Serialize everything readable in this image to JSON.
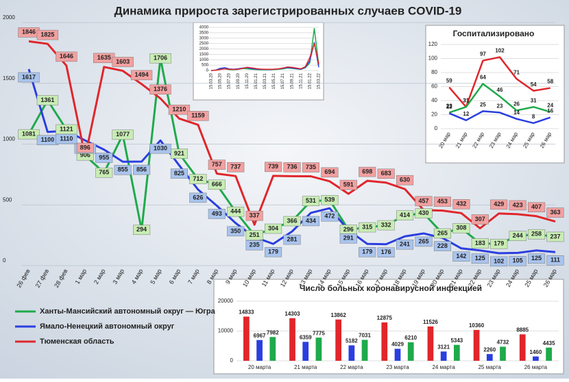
{
  "chart_data": [
    {
      "type": "line",
      "title": "Динамика прироста зарегистрированных случаев COVID-19",
      "categories": [
        "26 фев",
        "27 фев",
        "28 фев",
        "1 мар",
        "2 мар",
        "3 мар",
        "4 мар",
        "5 мар",
        "6 мар",
        "7 мар",
        "8 мар",
        "9 мар",
        "10 мар",
        "11 мар",
        "12 мар",
        "13 мар",
        "14 мар",
        "15 мар",
        "16 мар",
        "17 мар",
        "18 мар",
        "19 мар",
        "20 мар",
        "21 мар",
        "22 мар",
        "23 мар",
        "24 мар",
        "25 мар",
        "26 мар"
      ],
      "series": [
        {
          "name": "Ханты-Мансийский автономный округ — Югра",
          "color": "#1faa4b",
          "values": [
            1081,
            1361,
            1121,
            906,
            765,
            1077,
            294,
            1706,
            921,
            712,
            666,
            444,
            251,
            304,
            366,
            531,
            539,
            296,
            315,
            332,
            414,
            430,
            265,
            308,
            183,
            179,
            244,
            258,
            237
          ]
        },
        {
          "name": "Ямало-Ненецкий автономный округ",
          "color": "#2a3ee0",
          "values": [
            1617,
            1100,
            1110,
            1030,
            955,
            855,
            856,
            1030,
            825,
            626,
            493,
            350,
            235,
            179,
            281,
            434,
            472,
            291,
            179,
            176,
            241,
            265,
            228,
            142,
            125,
            102,
            105,
            125,
            111
          ]
        },
        {
          "name": "Тюменская область",
          "color": "#e0262b",
          "values": [
            1846,
            1825,
            1646,
            896,
            1635,
            1603,
            1494,
            1376,
            1210,
            1159,
            757,
            737,
            337,
            739,
            736,
            735,
            694,
            591,
            698,
            683,
            630,
            457,
            453,
            432,
            307,
            429,
            423,
            407,
            363
          ]
        }
      ],
      "ylim": [
        0,
        2000
      ],
      "yticks": [
        0,
        500,
        1000,
        1500,
        2000
      ],
      "grid": true
    },
    {
      "type": "line",
      "categories": [
        "15.03.20",
        null,
        "15.05.20",
        null,
        "15.07.20",
        null,
        "15.09.20",
        null,
        "15.11.20",
        null,
        "15.01.21",
        null,
        "15.03.21",
        null,
        "15.05.21",
        null,
        "15.07.21",
        null,
        "15.09.21",
        null,
        "15.11.21",
        null,
        "15.01.22",
        null,
        "15.03.22"
      ],
      "series": [
        {
          "color": "#1faa4b",
          "values": [
            0,
            40,
            120,
            150,
            90,
            70,
            100,
            180,
            160,
            120,
            90,
            70,
            80,
            70,
            90,
            110,
            150,
            230,
            200,
            150,
            100,
            260,
            700,
            3900,
            500
          ]
        },
        {
          "color": "#2a3ee0",
          "values": [
            0,
            30,
            200,
            260,
            150,
            120,
            160,
            230,
            260,
            180,
            130,
            100,
            110,
            90,
            120,
            150,
            200,
            280,
            240,
            170,
            130,
            300,
            900,
            2600,
            300
          ]
        },
        {
          "color": "#e0262b",
          "values": [
            0,
            20,
            90,
            150,
            120,
            100,
            110,
            200,
            300,
            250,
            180,
            130,
            120,
            110,
            130,
            160,
            230,
            330,
            300,
            230,
            160,
            350,
            1200,
            2500,
            600
          ]
        }
      ],
      "ylim": [
        0,
        4000
      ],
      "yticks": [
        0,
        500,
        1000,
        1500,
        2000,
        2500,
        3000,
        3500,
        4000
      ],
      "grid": true
    },
    {
      "type": "line",
      "title": "Госпитализировано",
      "categories": [
        "20 мар",
        "21 мар",
        "22 мар",
        "23 мар",
        "24 мар",
        "25 мар",
        "26 мар"
      ],
      "series": [
        {
          "color": "#e0262b",
          "values": [
            59,
            31,
            97,
            102,
            71,
            54,
            58
          ]
        },
        {
          "color": "#1faa4b",
          "values": [
            23,
            31,
            64,
            46,
            26,
            31,
            24
          ]
        },
        {
          "color": "#2a3ee0",
          "values": [
            22,
            12,
            25,
            23,
            14,
            8,
            16
          ]
        }
      ],
      "ylim": [
        0,
        120
      ],
      "yticks": [
        0,
        20,
        40,
        60,
        80,
        100,
        120
      ],
      "grid": true
    },
    {
      "type": "bar",
      "title": "Число больных коронавирусной  инфекцией",
      "categories": [
        "20 марта",
        "21 марта",
        "22 марта",
        "23 марта",
        "24 марта",
        "25 марта",
        "26 марта"
      ],
      "series": [
        {
          "color": "#e0262b",
          "values": [
            14833,
            14303,
            13862,
            12875,
            11526,
            10360,
            8885
          ]
        },
        {
          "color": "#2a3ee0",
          "values": [
            6967,
            6359,
            5182,
            4029,
            3121,
            2260,
            1460
          ]
        },
        {
          "color": "#1faa4b",
          "values": [
            7982,
            7775,
            7031,
            6210,
            5343,
            4732,
            4435
          ]
        }
      ],
      "ylim": [
        0,
        20000
      ],
      "yticks": [
        0,
        10000,
        20000
      ],
      "grid": true
    }
  ]
}
